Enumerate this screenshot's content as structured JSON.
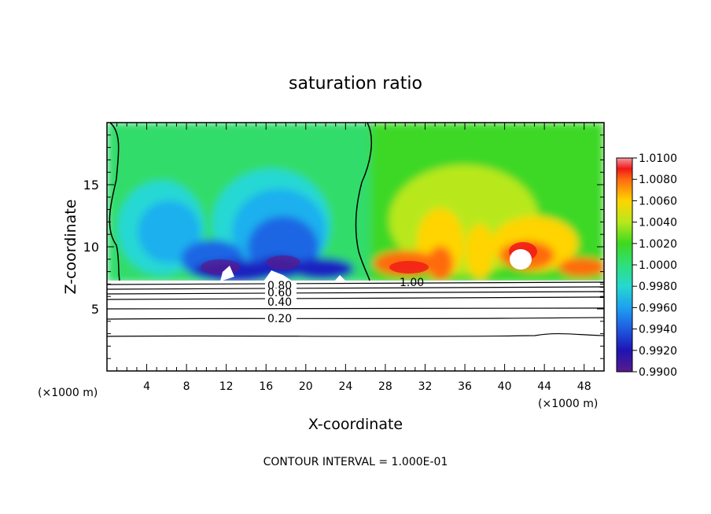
{
  "chart_data": {
    "type": "heatmap",
    "title": "saturation ratio",
    "xlabel": "X-coordinate",
    "ylabel": "Z-coordinate",
    "x_unit": "(×1000 m)",
    "xlim": [
      0,
      50
    ],
    "ylim": [
      0,
      20
    ],
    "x_ticks": [
      4,
      8,
      12,
      16,
      20,
      24,
      28,
      32,
      36,
      40,
      44,
      48
    ],
    "y_ticks": [
      5,
      10,
      15
    ],
    "colorbar": {
      "min": 0.99,
      "max": 1.01,
      "tick_labels": [
        "1.0100",
        "1.0080",
        "1.0060",
        "1.0040",
        "1.0020",
        "1.0000",
        "0.9980",
        "0.9960",
        "0.9940",
        "0.9920",
        "0.9900"
      ]
    },
    "contour_labels": [
      "0.80",
      "0.60",
      "0.40",
      "0.20",
      "1.00"
    ],
    "footer": "CONTOUR INTERVAL = 1.000E-01"
  }
}
